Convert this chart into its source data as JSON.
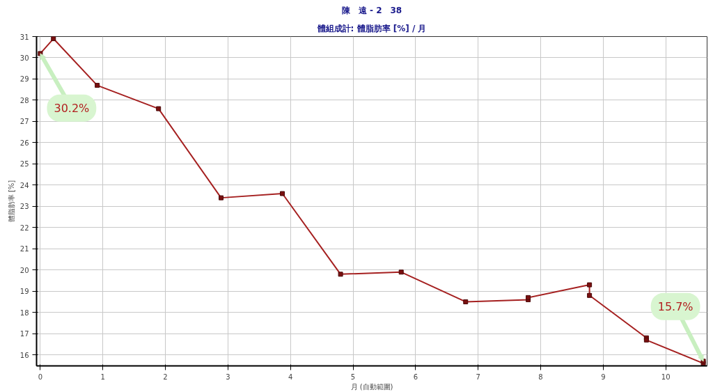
{
  "chart_data": {
    "type": "line",
    "title": "陳　遠 - 2　38",
    "subtitle": "體組成計: 體脂肪率 [%] / 月",
    "xlabel": "月 (自動範圍)",
    "ylabel": "體脂肪率 [%]",
    "x": [
      0,
      0.21,
      0.91,
      1.89,
      2.89,
      3.87,
      4.8,
      5.77,
      6.8,
      7.8,
      7.8,
      8.78,
      8.78,
      9.69,
      9.69,
      10.6,
      10.6
    ],
    "series": [
      {
        "color": "#a52020",
        "values": [
          30.2,
          30.9,
          28.7,
          27.6,
          23.4,
          23.6,
          19.8,
          19.9,
          18.5,
          18.6,
          18.7,
          19.3,
          18.8,
          16.8,
          16.7,
          15.6,
          15.7
        ]
      }
    ],
    "xlim": [
      -0.06,
      10.66
    ],
    "ylim": [
      15.48,
      31
    ],
    "xticks": [
      0,
      1,
      2,
      3,
      4,
      5,
      6,
      7,
      8,
      9,
      10
    ],
    "yticks": [
      16,
      17,
      18,
      19,
      20,
      21,
      22,
      23,
      24,
      25,
      26,
      27,
      28,
      29,
      30,
      31
    ],
    "grid": true,
    "marker": "square",
    "line_style": "solid",
    "annotations": [
      {
        "text": "30.2%",
        "x": 0,
        "y": 30.2
      },
      {
        "text": "15.7%",
        "x": 10.6,
        "y": 15.7
      }
    ]
  }
}
